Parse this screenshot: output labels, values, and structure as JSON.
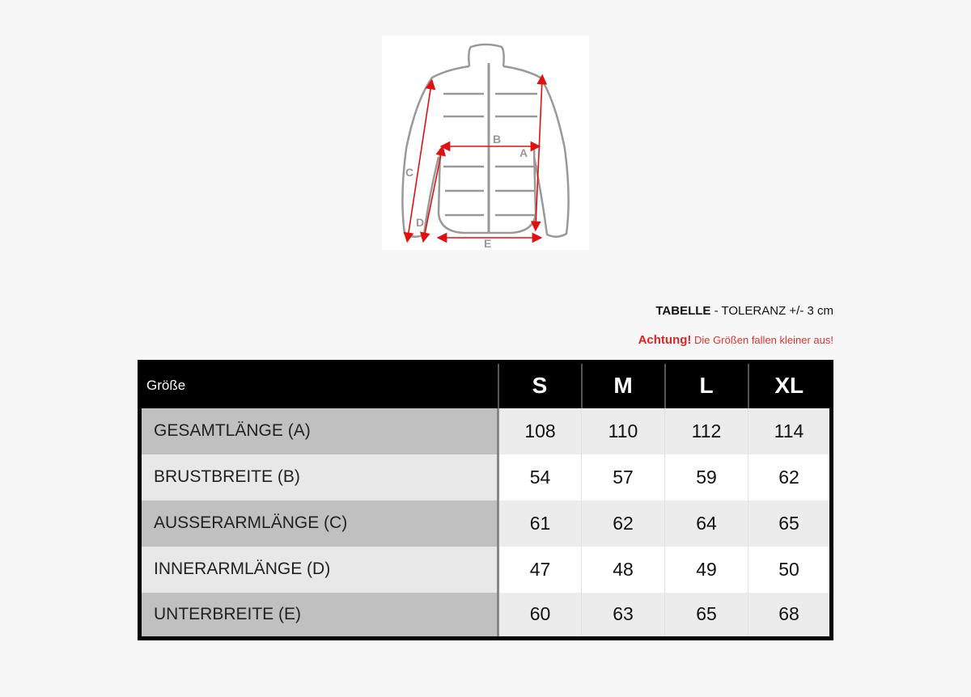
{
  "diagram": {
    "labels": [
      "A",
      "B",
      "C",
      "D",
      "E"
    ],
    "accent": "#e01010"
  },
  "tolerance": {
    "bold": "TABELLE",
    "rest": " - TOLERANZ +/- 3 cm"
  },
  "warning": {
    "bold": "Achtung!",
    "rest": " Die Größen fallen kleiner aus!"
  },
  "table": {
    "header": [
      "Größe",
      "S",
      "M",
      "L",
      "XL"
    ],
    "rows": [
      {
        "label": "GESAMTLÄNGE (A)",
        "values": [
          "108",
          "110",
          "112",
          "114"
        ]
      },
      {
        "label": "BRUSTBREITE (B)",
        "values": [
          "54",
          "57",
          "59",
          "62"
        ]
      },
      {
        "label": "AUSSERARMLÄNGE (C)",
        "values": [
          "61",
          "62",
          "64",
          "65"
        ]
      },
      {
        "label": "INNERARMLÄNGE (D)",
        "values": [
          "47",
          "48",
          "49",
          "50"
        ]
      },
      {
        "label": "UNTERBREITE (E)",
        "values": [
          "60",
          "63",
          "65",
          "68"
        ]
      }
    ]
  }
}
